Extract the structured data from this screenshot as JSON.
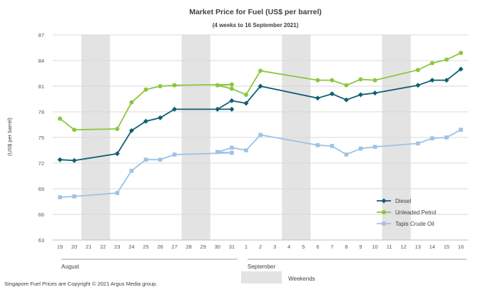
{
  "chart_data": {
    "type": "line",
    "title": "Market Price for Fuel  (US$  per barrel)",
    "subtitle": "(4 weeks to 16 September 2021)",
    "ylabel": "(US$ per barrel)",
    "ylim": [
      63,
      87
    ],
    "yticks": [
      63,
      66,
      69,
      72,
      75,
      78,
      81,
      84,
      87
    ],
    "categories": [
      "19",
      "20",
      "21",
      "22",
      "23",
      "24",
      "25",
      "26",
      "27",
      "28",
      "29",
      "30",
      "31",
      "1",
      "2",
      "3",
      "4",
      "5",
      "6",
      "7",
      "8",
      "9",
      "10",
      "11",
      "12",
      "13",
      "14",
      "15",
      "16"
    ],
    "months": [
      {
        "label": "August",
        "start": 0,
        "end": 12
      },
      {
        "label": "September",
        "start": 13,
        "end": 28
      }
    ],
    "weekend_ranges": [
      [
        2,
        3
      ],
      [
        9,
        10
      ],
      [
        16,
        17
      ],
      [
        23,
        24
      ]
    ],
    "weekend_label": "Weekends",
    "series": [
      {
        "name": "Diesel",
        "color": "#0e5f73",
        "marker": "diamond",
        "points": [
          [
            0,
            72.4
          ],
          [
            1,
            72.3
          ],
          [
            4,
            73.1
          ],
          [
            5,
            75.8
          ],
          [
            6,
            76.9
          ],
          [
            7,
            77.3
          ],
          [
            8,
            78.3
          ],
          [
            12,
            78.3
          ],
          [
            13,
            78.3
          ],
          [
            14,
            79.3
          ],
          [
            15,
            79.0
          ],
          [
            16,
            81.0
          ],
          [
            20,
            79.6
          ],
          [
            21,
            80.1
          ],
          [
            22,
            79.4
          ],
          [
            23,
            80.0
          ],
          [
            24,
            80.2
          ],
          [
            27,
            81.1
          ],
          [
            28,
            81.7
          ],
          [
            29,
            81.7
          ],
          [
            30,
            83.0
          ]
        ]
      },
      {
        "name": "Unleaded Petrol",
        "color": "#8cc63e",
        "marker": "circle",
        "points": [
          [
            0,
            77.2
          ],
          [
            1,
            75.9
          ],
          [
            4,
            76.0
          ],
          [
            5,
            79.1
          ],
          [
            6,
            80.6
          ],
          [
            7,
            81.0
          ],
          [
            8,
            81.1
          ],
          [
            12,
            81.2
          ],
          [
            13,
            81.1
          ],
          [
            14,
            80.7
          ],
          [
            15,
            80.0
          ],
          [
            16,
            82.8
          ],
          [
            20,
            81.7
          ],
          [
            21,
            81.7
          ],
          [
            22,
            81.1
          ],
          [
            23,
            81.8
          ],
          [
            24,
            81.7
          ],
          [
            27,
            82.9
          ],
          [
            28,
            83.7
          ],
          [
            29,
            84.1
          ],
          [
            30,
            84.9
          ]
        ]
      },
      {
        "name": "Tapis Crude Oil",
        "color": "#9dc3e6",
        "marker": "square",
        "points": [
          [
            0,
            68.0
          ],
          [
            1,
            68.1
          ],
          [
            4,
            68.5
          ],
          [
            5,
            71.1
          ],
          [
            6,
            72.4
          ],
          [
            7,
            72.4
          ],
          [
            8,
            73.0
          ],
          [
            12,
            73.2
          ],
          [
            13,
            73.3
          ],
          [
            14,
            73.8
          ],
          [
            15,
            73.5
          ],
          [
            16,
            75.3
          ],
          [
            20,
            74.1
          ],
          [
            21,
            74.0
          ],
          [
            22,
            73.0
          ],
          [
            23,
            73.7
          ],
          [
            24,
            73.9
          ],
          [
            27,
            74.3
          ],
          [
            28,
            74.9
          ],
          [
            29,
            75.0
          ],
          [
            30,
            75.9
          ]
        ]
      }
    ],
    "legend": "bottom-right",
    "grid": true
  },
  "footer": {
    "copyright": "Singapore  Fuel Prices are Copyright © 2021 Argus Media group."
  }
}
